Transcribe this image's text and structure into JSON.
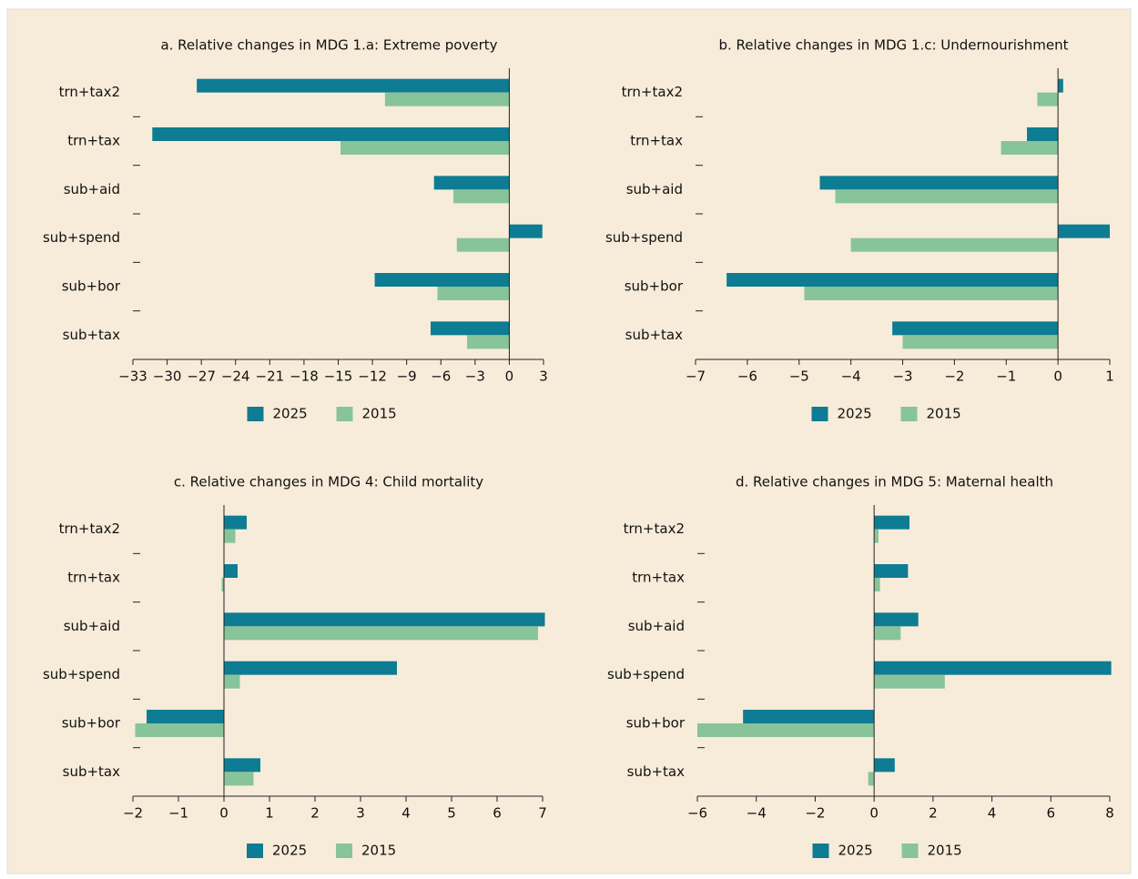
{
  "chart_data": [
    {
      "type": "bar",
      "title": "a.  Relative changes in MDG 1.a: Extreme poverty",
      "categories": [
        "trn+tax2",
        "trn+tax",
        "sub+aid",
        "sub+spend",
        "sub+bor",
        "sub+tax"
      ],
      "series": [
        {
          "name": "2025",
          "color": "#0e7c93",
          "values": [
            -27.4,
            -31.3,
            -6.6,
            2.9,
            -11.8,
            -6.9
          ]
        },
        {
          "name": "2015",
          "color": "#87c49a",
          "values": [
            -10.9,
            -14.8,
            -4.9,
            -4.6,
            -6.3,
            -3.7
          ]
        }
      ],
      "xlim": [
        -33,
        3
      ],
      "xticks": [
        {
          "value": -33,
          "label": "−33"
        },
        {
          "value": -30,
          "label": "−30"
        },
        {
          "value": -27,
          "label": "−27"
        },
        {
          "value": -24,
          "label": "−24"
        },
        {
          "value": -21,
          "label": "−21"
        },
        {
          "value": -18,
          "label": "−18"
        },
        {
          "value": -15,
          "label": "−15"
        },
        {
          "value": -12,
          "label": "−12"
        },
        {
          "value": -9,
          "label": "−9"
        },
        {
          "value": -6,
          "label": "−6"
        },
        {
          "value": -3,
          "label": "−3"
        },
        0,
        3
      ]
    },
    {
      "type": "bar",
      "title": "b.  Relative changes in MDG 1.c: Undernourishment",
      "categories": [
        "trn+tax2",
        "trn+tax",
        "sub+aid",
        "sub+spend",
        "sub+bor",
        "sub+tax"
      ],
      "series": [
        {
          "name": "2025",
          "color": "#0e7c93",
          "values": [
            0.1,
            -0.6,
            -4.6,
            1.0,
            -6.4,
            -3.2
          ]
        },
        {
          "name": "2015",
          "color": "#87c49a",
          "values": [
            -0.4,
            -1.1,
            -4.3,
            -4.0,
            -4.9,
            -3.0
          ]
        }
      ],
      "xlim": [
        -7,
        1
      ],
      "xticks": [
        {
          "value": -7,
          "label": "−7"
        },
        {
          "value": -6,
          "label": "−6"
        },
        {
          "value": -5,
          "label": "−5"
        },
        {
          "value": -4,
          "label": "−4"
        },
        {
          "value": -3,
          "label": "−3"
        },
        {
          "value": -2,
          "label": "−2"
        },
        {
          "value": -1,
          "label": "−1"
        },
        0,
        1
      ]
    },
    {
      "type": "bar",
      "title": "c.  Relative changes in MDG 4: Child mortality",
      "categories": [
        "trn+tax2",
        "trn+tax",
        "sub+aid",
        "sub+spend",
        "sub+bor",
        "sub+tax"
      ],
      "series": [
        {
          "name": "2025",
          "color": "#0e7c93",
          "values": [
            0.5,
            0.3,
            7.05,
            3.8,
            -1.7,
            0.8
          ]
        },
        {
          "name": "2015",
          "color": "#87c49a",
          "values": [
            0.25,
            -0.05,
            6.9,
            0.35,
            -1.95,
            0.65
          ]
        }
      ],
      "xlim": [
        -2,
        7
      ],
      "xticks": [
        {
          "value": -2,
          "label": "−2"
        },
        {
          "value": -1,
          "label": "−1"
        },
        0,
        1,
        2,
        3,
        4,
        5,
        6,
        7
      ]
    },
    {
      "type": "bar",
      "title": "d.  Relative changes in MDG 5: Maternal health",
      "categories": [
        "trn+tax2",
        "trn+tax",
        "sub+aid",
        "sub+spend",
        "sub+bor",
        "sub+tax"
      ],
      "series": [
        {
          "name": "2025",
          "color": "#0e7c93",
          "values": [
            1.2,
            1.15,
            1.5,
            8.05,
            -4.45,
            0.7
          ]
        },
        {
          "name": "2015",
          "color": "#87c49a",
          "values": [
            0.15,
            0.2,
            0.9,
            2.4,
            -6.0,
            -0.2
          ]
        }
      ],
      "xlim": [
        -6,
        8
      ],
      "xticks": [
        {
          "value": -6,
          "label": "−6"
        },
        {
          "value": -4,
          "label": "−4"
        },
        {
          "value": -2,
          "label": "−2"
        },
        0,
        2,
        4,
        6,
        8
      ]
    }
  ]
}
